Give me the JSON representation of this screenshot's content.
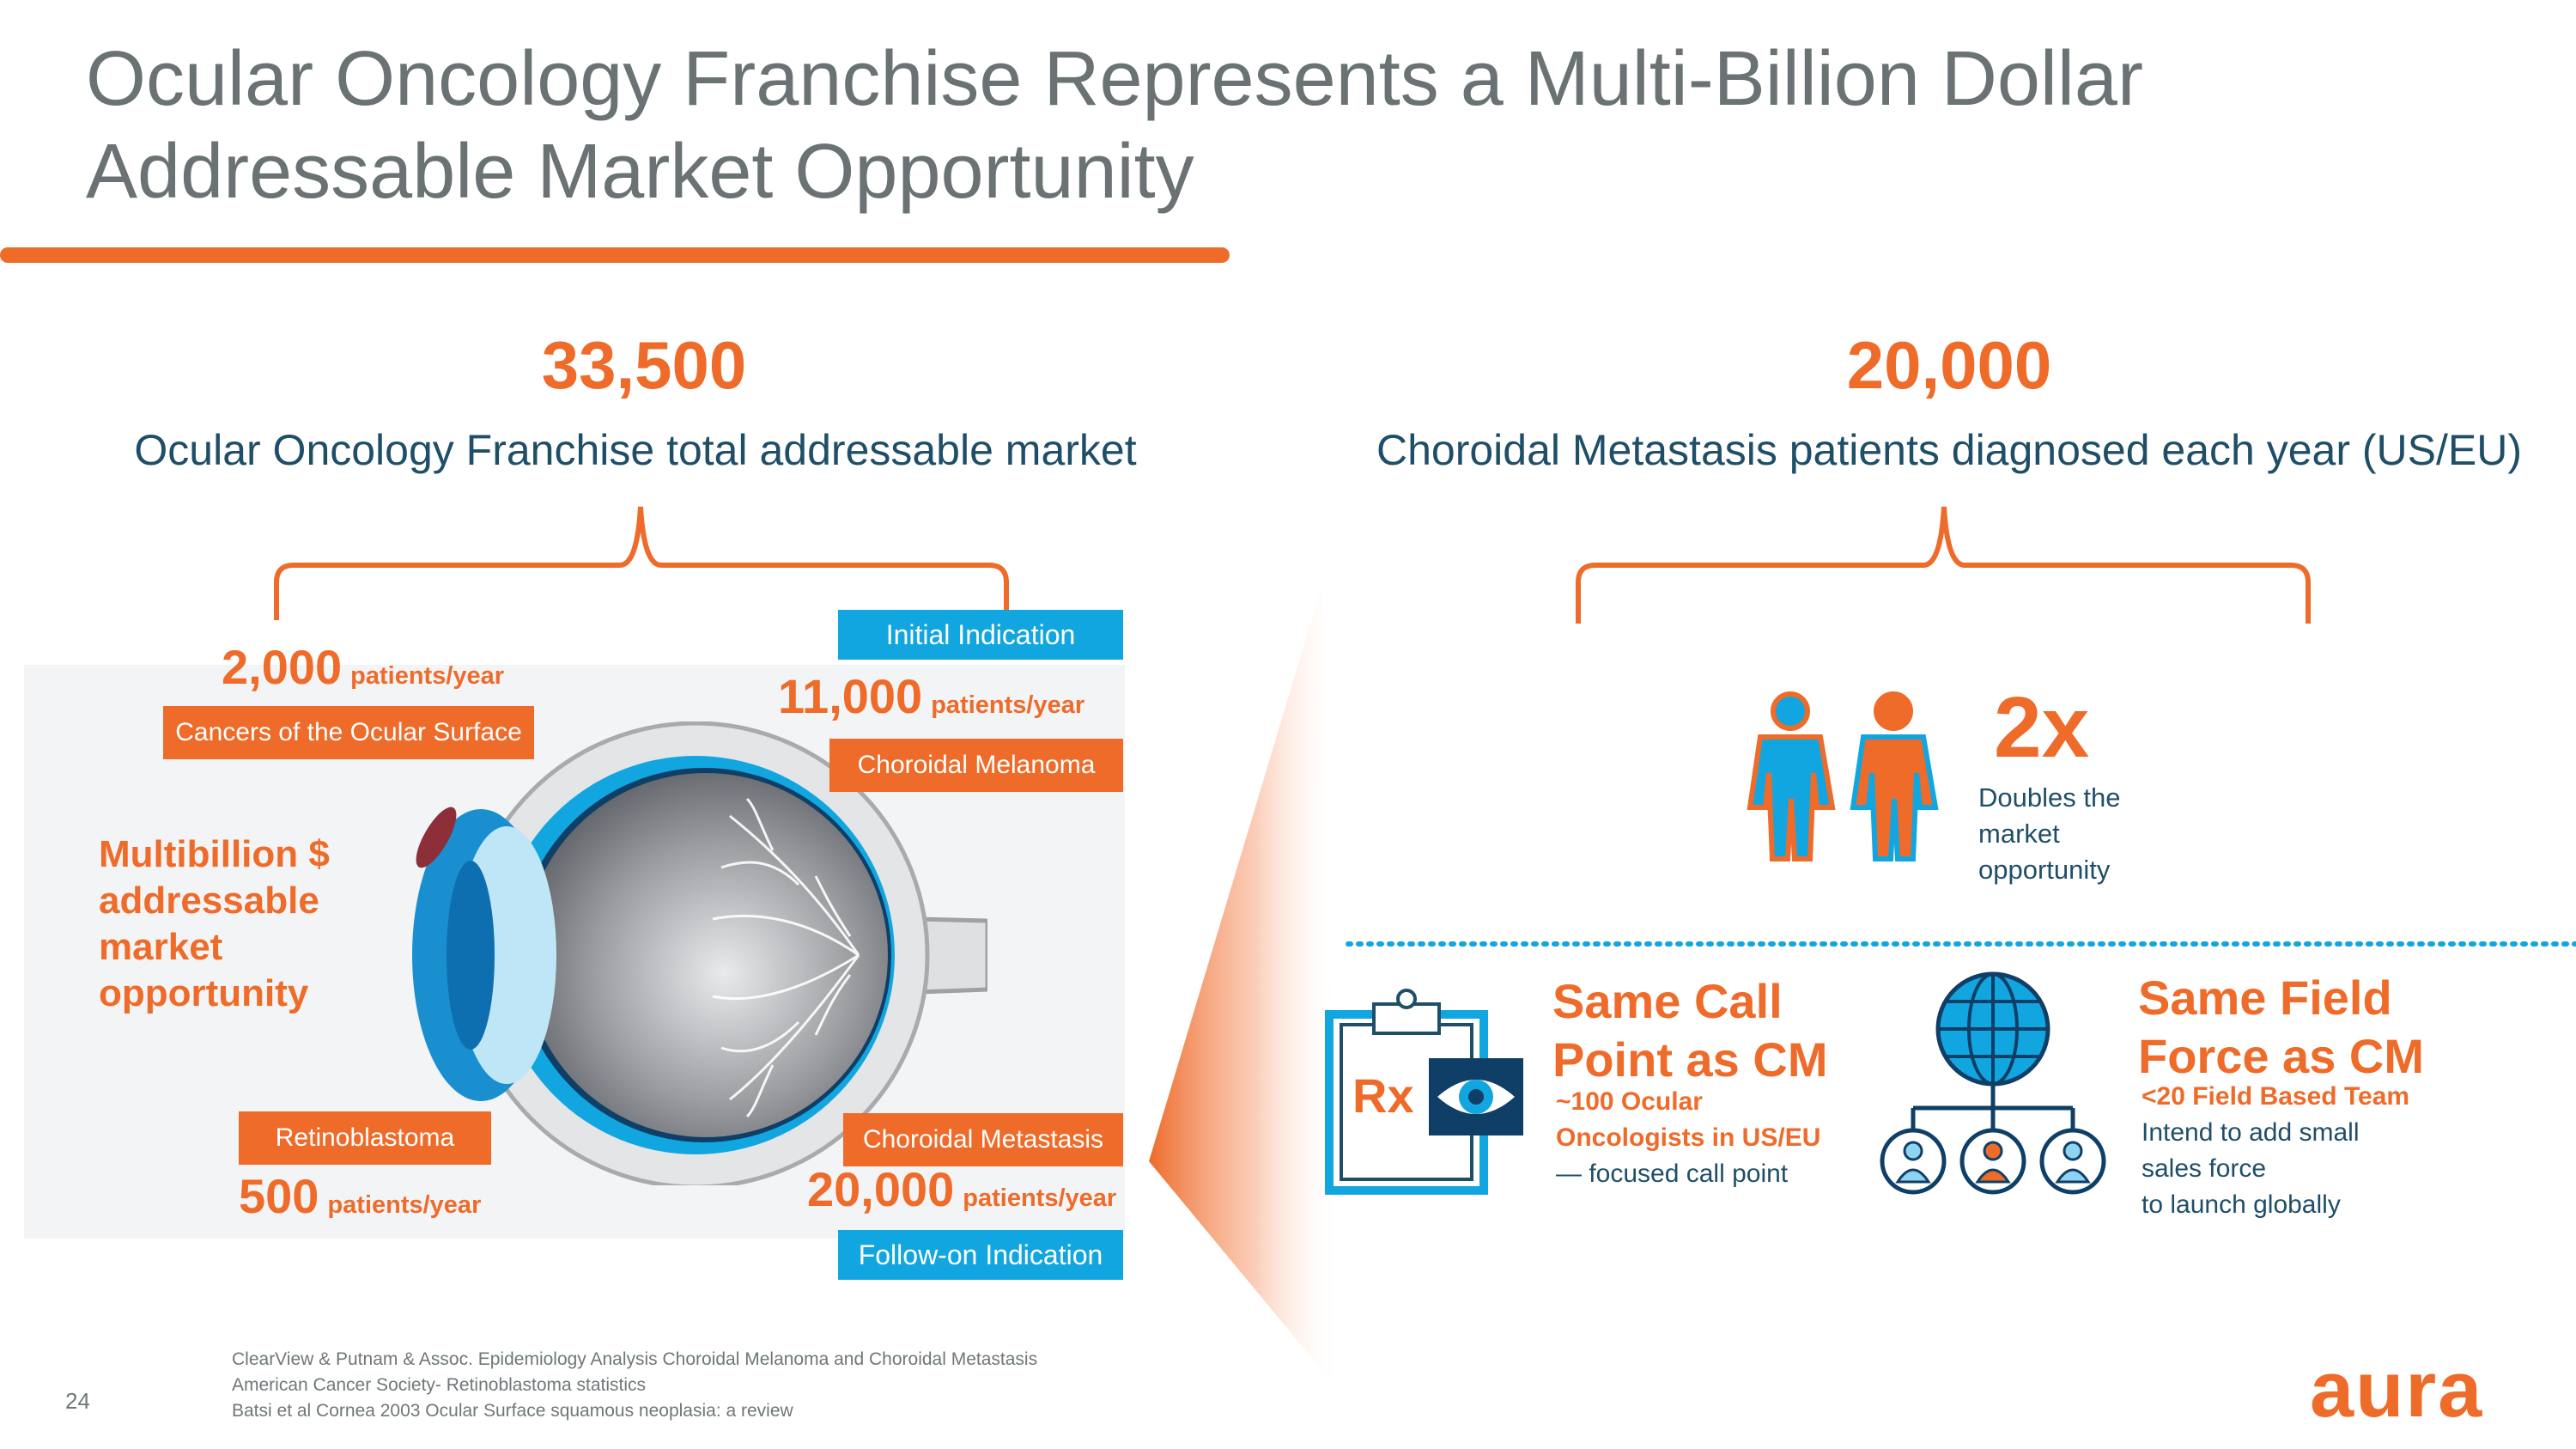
{
  "title": "Ocular Oncology Franchise Represents a Multi-Billion Dollar Addressable Market Opportunity",
  "left": {
    "total": "33,500",
    "caption": "Ocular Oncology Franchise total addressable market",
    "multibillion": [
      "Multibillion $",
      "addressable",
      "market",
      "opportunity"
    ],
    "segments": {
      "ocular_surface": {
        "number": "2,000",
        "unit": "patients/year",
        "label": "Cancers of the Ocular Surface"
      },
      "choroidal_melanoma": {
        "number": "11,000",
        "unit": "patients/year",
        "label": "Choroidal Melanoma",
        "indication": "Initial Indication"
      },
      "retinoblastoma": {
        "number": "500",
        "unit": "patients/year",
        "label": "Retinoblastoma"
      },
      "choroidal_metastasis": {
        "number": "20,000",
        "unit": "patients/year",
        "label": "Choroidal Metastasis",
        "indication": "Follow-on Indication"
      }
    }
  },
  "right": {
    "total": "20,000",
    "caption": "Choroidal Metastasis patients diagnosed each year (US/EU)",
    "multiplier": "2x",
    "multiplier_desc": [
      "Doubles the",
      "market",
      "opportunity"
    ],
    "call_point": {
      "icon_label": "Rx",
      "heading": [
        "Same Call",
        "Point as CM"
      ],
      "sub_bold": [
        "~100 Ocular",
        "Oncologists in US/EU"
      ],
      "sub": "— focused call point"
    },
    "field_force": {
      "heading": [
        "Same Field",
        "Force as CM"
      ],
      "sub_bold": "<20 Field Based Team",
      "sub": [
        "Intend to add small",
        "sales force",
        "to launch globally"
      ]
    }
  },
  "footnotes": [
    "ClearView & Putnam & Assoc. Epidemiology Analysis Choroidal Melanoma and Choroidal Metastasis",
    "American Cancer Society- Retinoblastoma statistics",
    "Batsi et al Cornea 2003 Ocular Surface squamous neoplasia: a review"
  ],
  "page_number": "24",
  "logo": "aura",
  "colors": {
    "accent": "#ee6b2a",
    "blue": "#12a6e0",
    "navy": "#1f4e68",
    "title_gray": "#6b7273"
  },
  "icons": [
    "people-icon",
    "clipboard-rx-icon",
    "eye-icon",
    "globe-network-icon"
  ]
}
